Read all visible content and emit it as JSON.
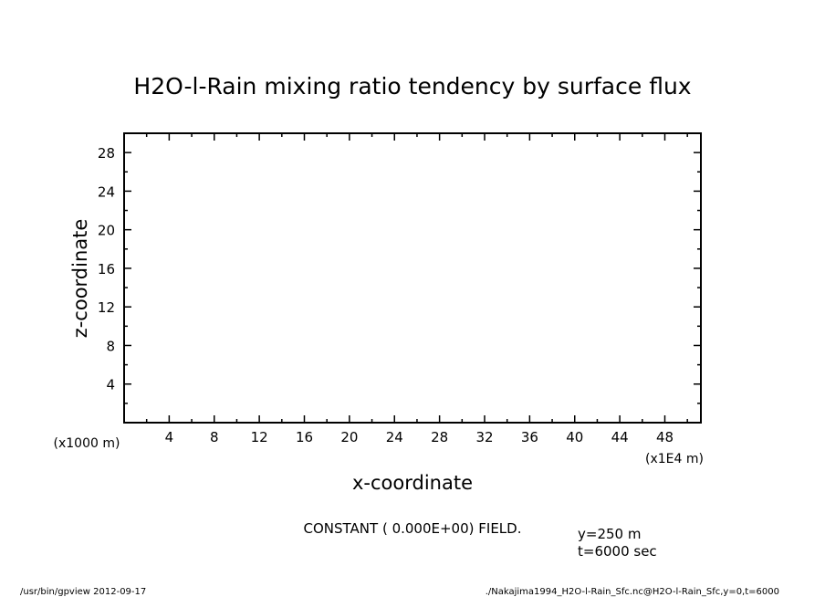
{
  "chart_data": {
    "type": "heatmap",
    "title": "H2O-l-Rain mixing ratio tendency by surface flux",
    "xlabel": "x-coordinate",
    "ylabel": "z-coordinate",
    "x_unit_left": "(x1000 m)",
    "x_unit_right": "(x1E4 m)",
    "xlim": [
      0,
      51.2
    ],
    "ylim": [
      0,
      30
    ],
    "x_ticks": [
      "4",
      "8",
      "12",
      "16",
      "20",
      "24",
      "28",
      "32",
      "36",
      "40",
      "44",
      "48"
    ],
    "y_ticks": [
      "4",
      "8",
      "12",
      "16",
      "20",
      "24",
      "28"
    ],
    "grid": false,
    "field_message": "CONSTANT ( 0.000E+00) FIELD.",
    "values": []
  },
  "info": {
    "y_slice": "y=250 m",
    "time": "t=6000 sec"
  },
  "footer": {
    "program": "/usr/bin/gpview  2012-09-17",
    "source": "./Nakajima1994_H2O-l-Rain_Sfc.nc@H2O-l-Rain_Sfc,y=0,t=6000"
  }
}
